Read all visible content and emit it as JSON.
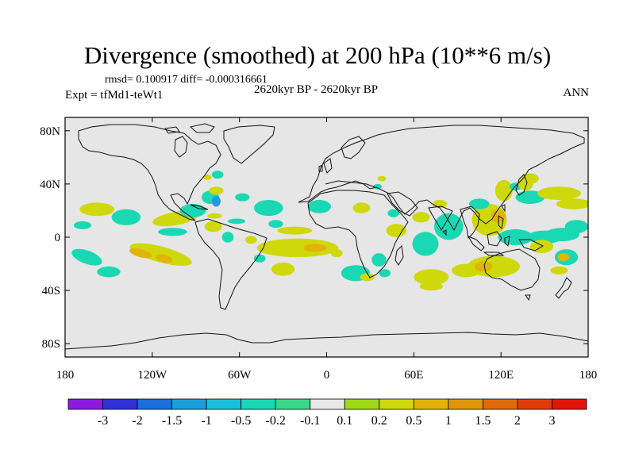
{
  "title": "Divergence (smoothed) at 200 hPa (10**6 m/s)",
  "stats_line": "rmsd= 0.100917 diff= -0.000316661",
  "expt_label": "Expt = tfMd1-teWt1",
  "period_label": "2620kyr BP - 2620kyr BP",
  "season_label": "ANN",
  "chart_data": {
    "type": "heatmap",
    "title": "Divergence (smoothed) at 200 hPa (10**6 m/s)",
    "projection": "cylindrical equidistant",
    "x_range": [
      -180,
      180
    ],
    "y_range": [
      -90,
      90
    ],
    "x_ticks": [
      {
        "value": -180,
        "label": "180"
      },
      {
        "value": -120,
        "label": "120W"
      },
      {
        "value": -60,
        "label": "60W"
      },
      {
        "value": 0,
        "label": "0"
      },
      {
        "value": 60,
        "label": "60E"
      },
      {
        "value": 120,
        "label": "120E"
      },
      {
        "value": 180,
        "label": "180"
      }
    ],
    "y_ticks": [
      {
        "value": 80,
        "label": "80N"
      },
      {
        "value": 40,
        "label": "40N"
      },
      {
        "value": 0,
        "label": "0"
      },
      {
        "value": -40,
        "label": "40S"
      },
      {
        "value": -80,
        "label": "80S"
      }
    ],
    "colorbar": {
      "labels": [
        "-3",
        "-2",
        "-1.5",
        "-1",
        "-0.5",
        "-0.2",
        "-0.1",
        "0.1",
        "0.2",
        "0.5",
        "1",
        "1.5",
        "2",
        "3"
      ],
      "colors": [
        "#8a1ae0",
        "#3030d8",
        "#1a70dc",
        "#1a9edc",
        "#1ac0dc",
        "#1ad8b4",
        "#3cd88c",
        "#e8e8e8",
        "#a0d81a",
        "#cfd80a",
        "#e2b40a",
        "#e0960a",
        "#e06a0a",
        "#e03c0a",
        "#e0140a"
      ]
    },
    "anomaly_patches": [
      {
        "lon": -114,
        "lat": -13,
        "rx": 22,
        "ry": 6,
        "rot": 15,
        "value": 0.3
      },
      {
        "lon": -128,
        "lat": -12,
        "rx": 8,
        "ry": 3,
        "rot": 15,
        "value": 0.7
      },
      {
        "lon": -112,
        "lat": -16,
        "rx": 6,
        "ry": 3,
        "rot": 15,
        "value": 0.7
      },
      {
        "lon": -165,
        "lat": -15,
        "rx": 11,
        "ry": 5,
        "rot": 20,
        "value": -0.3
      },
      {
        "lon": -150,
        "lat": -26,
        "rx": 8,
        "ry": 4,
        "rot": 0,
        "value": -0.3
      },
      {
        "lon": -158,
        "lat": 21,
        "rx": 12,
        "ry": 5,
        "rot": 0,
        "value": 0.3
      },
      {
        "lon": -138,
        "lat": 15,
        "rx": 10,
        "ry": 6,
        "rot": 0,
        "value": -0.3
      },
      {
        "lon": -168,
        "lat": 9,
        "rx": 6,
        "ry": 3,
        "rot": 0,
        "value": -0.3
      },
      {
        "lon": -104,
        "lat": 14,
        "rx": 16,
        "ry": 5,
        "rot": -10,
        "value": 0.3
      },
      {
        "lon": -106,
        "lat": 4,
        "rx": 10,
        "ry": 3,
        "rot": 0,
        "value": -0.3
      },
      {
        "lon": -92,
        "lat": 20,
        "rx": 9,
        "ry": 5,
        "rot": 0,
        "value": -0.3
      },
      {
        "lon": -80,
        "lat": 30,
        "rx": 6,
        "ry": 5,
        "rot": 0,
        "value": -0.3
      },
      {
        "lon": -76,
        "lat": 27,
        "rx": 3,
        "ry": 4,
        "rot": 0,
        "value": -1.2
      },
      {
        "lon": -76,
        "lat": 35,
        "rx": 5,
        "ry": 3,
        "rot": 0,
        "value": 0.3
      },
      {
        "lon": -58,
        "lat": 30,
        "rx": 5,
        "ry": 3,
        "rot": 0,
        "value": -0.3
      },
      {
        "lon": -40,
        "lat": 22,
        "rx": 10,
        "ry": 6,
        "rot": 0,
        "value": -0.3
      },
      {
        "lon": -75,
        "lat": 47,
        "rx": 4,
        "ry": 3,
        "rot": 0,
        "value": -0.3
      },
      {
        "lon": -82,
        "lat": 45,
        "rx": 3,
        "ry": 2,
        "rot": 0,
        "value": 0.3
      },
      {
        "lon": -78,
        "lat": 8,
        "rx": 6,
        "ry": 4,
        "rot": 0,
        "value": 0.3
      },
      {
        "lon": -77,
        "lat": 16,
        "rx": 5,
        "ry": 2,
        "rot": 0,
        "value": 0.3
      },
      {
        "lon": -62,
        "lat": 12,
        "rx": 6,
        "ry": 2,
        "rot": 0,
        "value": -0.3
      },
      {
        "lon": -68,
        "lat": 0,
        "rx": 4,
        "ry": 4,
        "rot": 0,
        "value": -0.3
      },
      {
        "lon": -52,
        "lat": -2,
        "rx": 4,
        "ry": 3,
        "rot": 0,
        "value": 0.3
      },
      {
        "lon": -20,
        "lat": -8,
        "rx": 28,
        "ry": 7,
        "rot": 0,
        "value": 0.4
      },
      {
        "lon": -8,
        "lat": -8,
        "rx": 8,
        "ry": 3,
        "rot": 0,
        "value": 0.7
      },
      {
        "lon": -30,
        "lat": -24,
        "rx": 8,
        "ry": 5,
        "rot": 0,
        "value": 0.3
      },
      {
        "lon": -46,
        "lat": -16,
        "rx": 4,
        "ry": 3,
        "rot": 0,
        "value": -0.3
      },
      {
        "lon": -22,
        "lat": 5,
        "rx": 12,
        "ry": 3,
        "rot": 0,
        "value": 0.3
      },
      {
        "lon": -5,
        "lat": 23,
        "rx": 8,
        "ry": 5,
        "rot": 0,
        "value": -0.3
      },
      {
        "lon": -35,
        "lat": 10,
        "rx": 5,
        "ry": 3,
        "rot": 0,
        "value": -0.3
      },
      {
        "lon": 7,
        "lat": -12,
        "rx": 4,
        "ry": 3,
        "rot": 0,
        "value": 0.3
      },
      {
        "lon": 20,
        "lat": -27,
        "rx": 10,
        "ry": 6,
        "rot": 0,
        "value": -0.3
      },
      {
        "lon": 36,
        "lat": -17,
        "rx": 5,
        "ry": 5,
        "rot": 0,
        "value": -0.3
      },
      {
        "lon": 28,
        "lat": -30,
        "rx": 5,
        "ry": 3,
        "rot": 0,
        "value": 0.3
      },
      {
        "lon": 40,
        "lat": -27,
        "rx": 4,
        "ry": 3,
        "rot": 0,
        "value": -0.3
      },
      {
        "lon": 24,
        "lat": 22,
        "rx": 6,
        "ry": 4,
        "rot": 0,
        "value": 0.3
      },
      {
        "lon": 48,
        "lat": 5,
        "rx": 7,
        "ry": 5,
        "rot": 0,
        "value": 0.3
      },
      {
        "lon": 46,
        "lat": 18,
        "rx": 4,
        "ry": 3,
        "rot": 0,
        "value": -0.3
      },
      {
        "lon": 35,
        "lat": 38,
        "rx": 3,
        "ry": 2,
        "rot": 0,
        "value": -0.3
      },
      {
        "lon": 38,
        "lat": 44,
        "rx": 3,
        "ry": 2,
        "rot": 0,
        "value": 0.3
      },
      {
        "lon": 68,
        "lat": -5,
        "rx": 9,
        "ry": 9,
        "rot": 0,
        "value": -0.3
      },
      {
        "lon": 84,
        "lat": 8,
        "rx": 10,
        "ry": 10,
        "rot": 0,
        "value": -0.4
      },
      {
        "lon": 65,
        "lat": 15,
        "rx": 6,
        "ry": 4,
        "rot": 0,
        "value": 0.3
      },
      {
        "lon": 78,
        "lat": 25,
        "rx": 5,
        "ry": 3,
        "rot": 0,
        "value": 0.3
      },
      {
        "lon": 72,
        "lat": -30,
        "rx": 12,
        "ry": 6,
        "rot": 0,
        "value": 0.3
      },
      {
        "lon": 96,
        "lat": -25,
        "rx": 10,
        "ry": 5,
        "rot": 0,
        "value": 0.3
      },
      {
        "lon": 115,
        "lat": -22,
        "rx": 18,
        "ry": 8,
        "rot": 0,
        "value": 0.3
      },
      {
        "lon": 108,
        "lat": -22,
        "rx": 6,
        "ry": 4,
        "rot": 0,
        "value": 0.6
      },
      {
        "lon": 72,
        "lat": -37,
        "rx": 8,
        "ry": 3,
        "rot": 0,
        "value": 0.3
      },
      {
        "lon": 112,
        "lat": 13,
        "rx": 12,
        "ry": 12,
        "rot": 0,
        "value": 0.3
      },
      {
        "lon": 118,
        "lat": 16,
        "rx": 5,
        "ry": 5,
        "rot": 0,
        "value": 0.7
      },
      {
        "lon": 105,
        "lat": 25,
        "rx": 7,
        "ry": 4,
        "rot": 0,
        "value": -0.3
      },
      {
        "lon": 122,
        "lat": 35,
        "rx": 6,
        "ry": 8,
        "rot": 0,
        "value": 0.3
      },
      {
        "lon": 130,
        "lat": 38,
        "rx": 4,
        "ry": 3,
        "rot": 0,
        "value": -0.3
      },
      {
        "lon": 140,
        "lat": 30,
        "rx": 10,
        "ry": 5,
        "rot": 0,
        "value": -0.3
      },
      {
        "lon": 140,
        "lat": 44,
        "rx": 6,
        "ry": 4,
        "rot": 0,
        "value": 0.3
      },
      {
        "lon": 137,
        "lat": 40,
        "rx": 5,
        "ry": 5,
        "rot": 0,
        "value": 0.3
      },
      {
        "lon": 160,
        "lat": 33,
        "rx": 15,
        "ry": 5,
        "rot": 0,
        "value": 0.3
      },
      {
        "lon": 170,
        "lat": 25,
        "rx": 12,
        "ry": 4,
        "rot": 0,
        "value": 0.3
      },
      {
        "lon": 172,
        "lat": 8,
        "rx": 8,
        "ry": 5,
        "rot": 0,
        "value": -0.3
      },
      {
        "lon": 130,
        "lat": 0,
        "rx": 12,
        "ry": 6,
        "rot": 0,
        "value": -0.3
      },
      {
        "lon": 150,
        "lat": 0,
        "rx": 12,
        "ry": 5,
        "rot": 0,
        "value": -0.3
      },
      {
        "lon": 162,
        "lat": 2,
        "rx": 12,
        "ry": 5,
        "rot": 0,
        "value": -0.4
      },
      {
        "lon": 148,
        "lat": -7,
        "rx": 8,
        "ry": 5,
        "rot": 0,
        "value": 0.3
      },
      {
        "lon": 165,
        "lat": -15,
        "rx": 8,
        "ry": 6,
        "rot": 0,
        "value": -0.3
      },
      {
        "lon": 163,
        "lat": -15,
        "rx": 4,
        "ry": 3,
        "rot": 0,
        "value": 0.6
      },
      {
        "lon": 160,
        "lat": -25,
        "rx": 6,
        "ry": 3,
        "rot": 0,
        "value": 0.3
      }
    ]
  }
}
